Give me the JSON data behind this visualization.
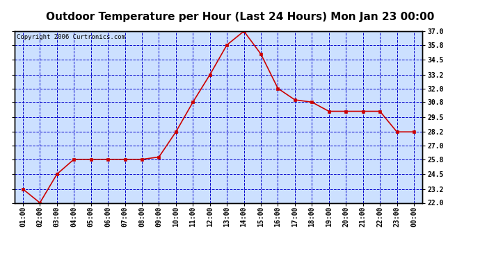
{
  "title": "Outdoor Temperature per Hour (Last 24 Hours) Mon Jan 23 00:00",
  "copyright": "Copyright 2006 Curtronics.com",
  "hours": [
    "01:00",
    "02:00",
    "03:00",
    "04:00",
    "05:00",
    "06:00",
    "07:00",
    "08:00",
    "09:00",
    "10:00",
    "11:00",
    "12:00",
    "13:00",
    "14:00",
    "15:00",
    "16:00",
    "17:00",
    "18:00",
    "19:00",
    "20:00",
    "21:00",
    "22:00",
    "23:00",
    "00:00"
  ],
  "temps": [
    23.2,
    22.0,
    24.5,
    25.8,
    25.8,
    25.8,
    25.8,
    25.8,
    26.0,
    28.2,
    30.8,
    33.2,
    35.8,
    37.0,
    35.0,
    32.0,
    31.0,
    30.8,
    30.0,
    30.0,
    30.0,
    30.0,
    28.2,
    28.2
  ],
  "ylim": [
    22.0,
    37.0
  ],
  "yticks": [
    22.0,
    23.2,
    24.5,
    25.8,
    27.0,
    28.2,
    29.5,
    30.8,
    32.0,
    33.2,
    34.5,
    35.8,
    37.0
  ],
  "line_color": "#cc0000",
  "marker_color": "#cc0000",
  "grid_color": "#0000cc",
  "bg_color": "#cce0ff",
  "border_color": "#000000",
  "title_fontsize": 11,
  "axis_label_fontsize": 7,
  "copyright_fontsize": 6.5,
  "title_bg": "#ffffff"
}
